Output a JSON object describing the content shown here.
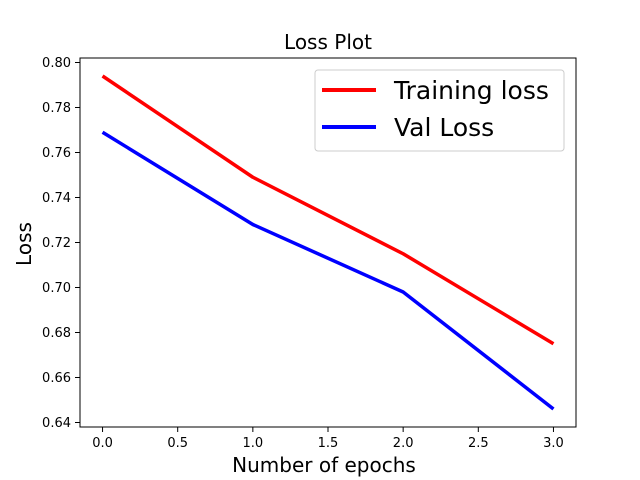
{
  "chart_data": {
    "type": "line",
    "title": "Loss Plot",
    "xlabel": "Number of epochs",
    "ylabel": "Loss",
    "x": [
      0,
      1,
      2,
      3
    ],
    "xlim": [
      -0.15,
      3.15
    ],
    "ylim": [
      0.638,
      0.802
    ],
    "xticks": [
      0,
      0.5,
      1,
      1.5,
      2,
      2.5,
      3
    ],
    "xtick_labels": [
      "0.0",
      "0.5",
      "1.0",
      "1.5",
      "2.0",
      "2.5",
      "3.0"
    ],
    "yticks": [
      0.64,
      0.66,
      0.68,
      0.7,
      0.72,
      0.74,
      0.76,
      0.78,
      0.8
    ],
    "ytick_labels": [
      "0.64",
      "0.66",
      "0.68",
      "0.70",
      "0.72",
      "0.74",
      "0.76",
      "0.78",
      "0.80"
    ],
    "grid": false,
    "legend_position": "top-right",
    "series": [
      {
        "name": "Training loss",
        "color": "#ff0000",
        "values": [
          0.794,
          0.749,
          0.715,
          0.675
        ]
      },
      {
        "name": "Val Loss",
        "color": "#0000ff",
        "values": [
          0.769,
          0.728,
          0.698,
          0.646
        ]
      }
    ]
  }
}
